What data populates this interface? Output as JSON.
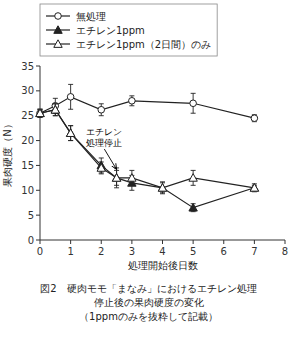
{
  "chart_data": {
    "type": "line",
    "xlabel": "処理開始後日数",
    "ylabel": "果肉硬度（N）",
    "series": [
      {
        "name": "無処理",
        "x": [
          0,
          0.5,
          1,
          2,
          3,
          5,
          7
        ],
        "values": [
          25.5,
          27.0,
          28.8,
          26.2,
          28.0,
          27.5,
          24.5
        ],
        "yerr": [
          0.8,
          1.5,
          2.5,
          1.2,
          1.0,
          2.0,
          0.7
        ],
        "marker": "circle-open",
        "line_style": "solid",
        "color": "#222222"
      },
      {
        "name": "エチレン1ppm",
        "x": [
          0,
          0.5,
          1,
          2,
          2.5,
          3,
          4,
          5,
          7
        ],
        "values": [
          25.5,
          26.2,
          21.5,
          15.0,
          12.5,
          11.5,
          10.5,
          6.5,
          10.5
        ],
        "yerr": [
          0.8,
          1.2,
          1.5,
          1.5,
          2.0,
          1.5,
          1.0,
          0.8,
          0.5
        ],
        "marker": "triangle-filled",
        "line_style": "solid",
        "color": "#222222"
      },
      {
        "name": "エチレン1ppm（2日間）のみ",
        "x": [
          0,
          0.5,
          1,
          2,
          2.5,
          3,
          4,
          5,
          7
        ],
        "values": [
          25.5,
          26.2,
          21.5,
          14.5,
          12.5,
          12.5,
          10.5,
          12.5,
          10.5
        ],
        "yerr": [
          0.8,
          1.2,
          1.5,
          1.2,
          1.5,
          1.5,
          1.2,
          1.5,
          0.8
        ],
        "marker": "triangle-open",
        "line_style": "solid",
        "color": "#222222"
      }
    ],
    "xlim": [
      0,
      8
    ],
    "ylim": [
      0,
      35
    ],
    "xticks": [
      0,
      1,
      2,
      3,
      4,
      5,
      6,
      7,
      8
    ],
    "yticks": [
      0,
      5,
      10,
      15,
      20,
      25,
      30,
      35
    ],
    "grid": false,
    "legend": "top",
    "annotations": [
      {
        "text": "エチレン\n処理停止",
        "x": 2.5,
        "y": 14.2,
        "text_x": 2.1,
        "text_y": 18.5
      }
    ],
    "captions": [
      "図2　硬肉モモ「まなみ」におけるエチレン処理",
      "停止後の果肉硬度の変化",
      "（1ppmのみを抜粋して記載）"
    ]
  }
}
